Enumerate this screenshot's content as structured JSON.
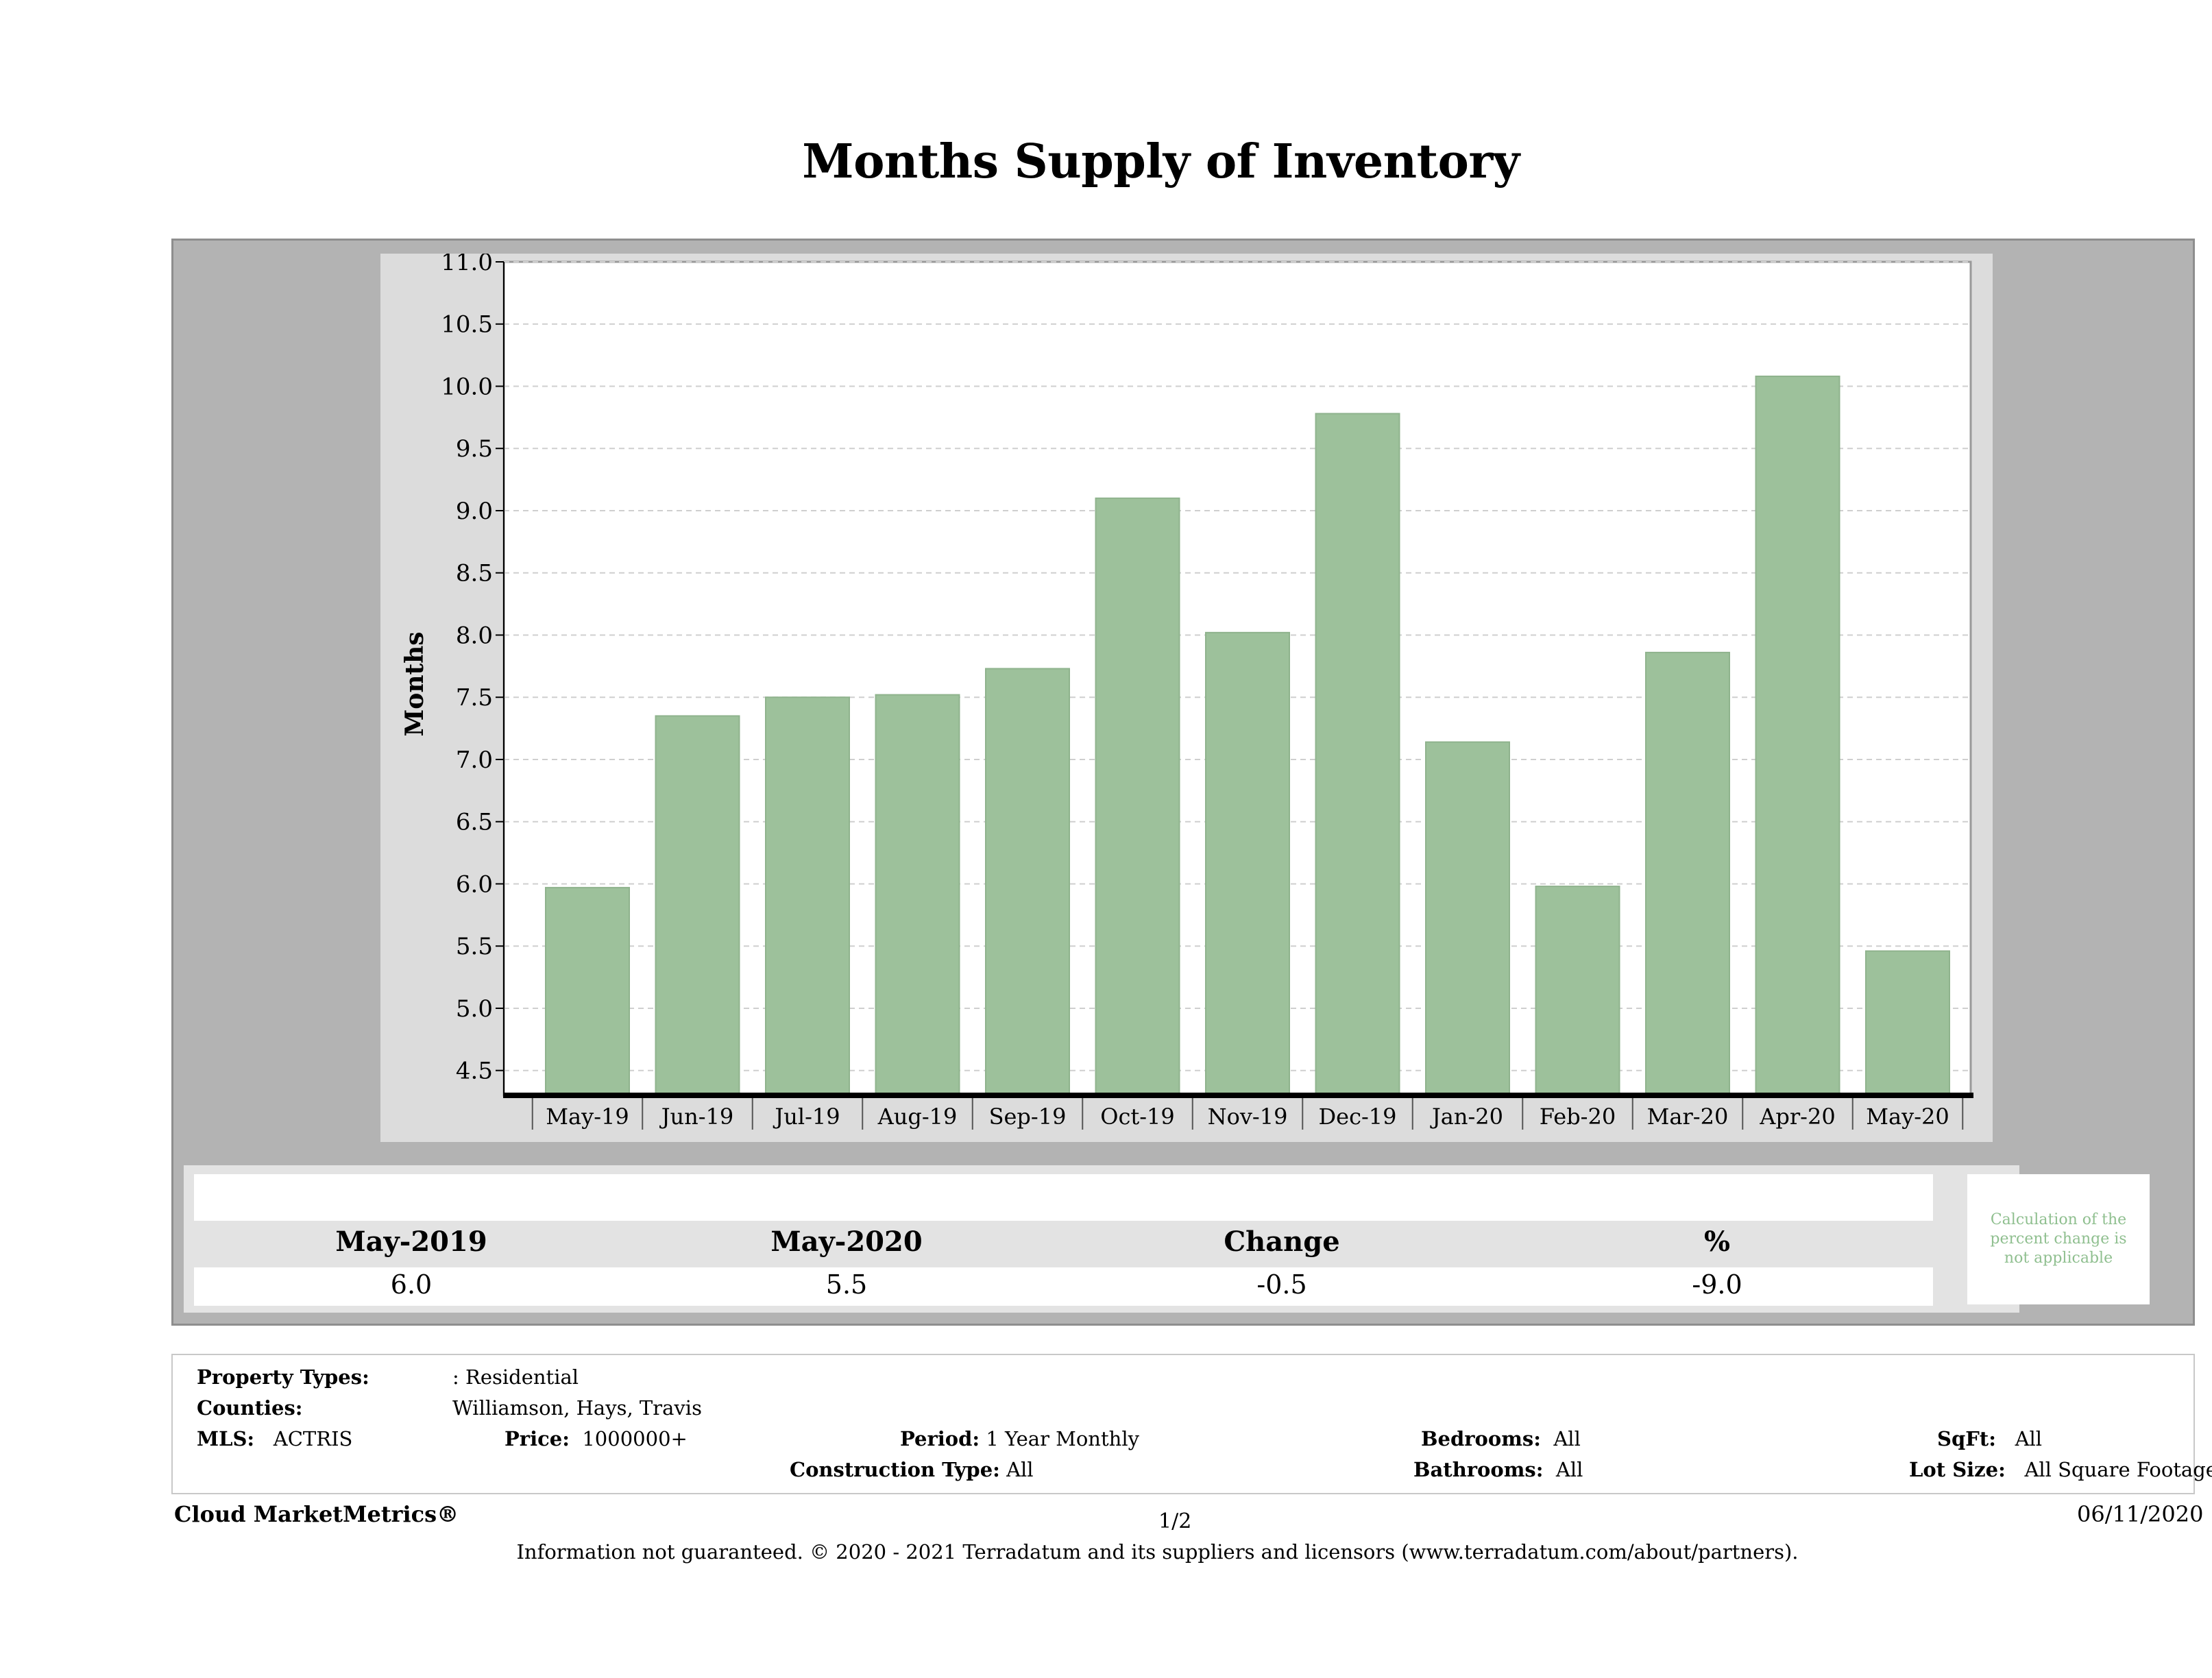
{
  "title": "Months Supply of Inventory",
  "chart_data": {
    "type": "bar",
    "title": "Months Supply of Inventory",
    "xlabel": "",
    "ylabel": "Months",
    "ylim": [
      4.3,
      11.0
    ],
    "yticks": [
      "11.0",
      "10.5",
      "10.0",
      "9.5",
      "9.0",
      "8.5",
      "8.0",
      "7.5",
      "7.0",
      "6.5",
      "6.0",
      "5.5",
      "5.0",
      "4.5"
    ],
    "categories": [
      "May-19",
      "Jun-19",
      "Jul-19",
      "Aug-19",
      "Sep-19",
      "Oct-19",
      "Nov-19",
      "Dec-19",
      "Jan-20",
      "Feb-20",
      "Mar-20",
      "Apr-20",
      "May-20"
    ],
    "values": [
      5.97,
      7.35,
      7.5,
      7.52,
      7.73,
      9.1,
      8.02,
      9.78,
      7.14,
      5.98,
      7.86,
      10.08,
      5.46
    ],
    "bar_color": "#9dc19b",
    "grid": true
  },
  "summary": {
    "headers": [
      "May-2019",
      "May-2020",
      "Change",
      "%"
    ],
    "values": [
      "6.0",
      "5.5",
      "-0.5",
      "-9.0"
    ],
    "note": "Calculation of the percent change is not applicable"
  },
  "info": {
    "property_types_label": "Property Types:",
    "property_types_value": ": Residential",
    "counties_label": "Counties:",
    "counties_value": "Williamson, Hays, Travis",
    "mls_label": "MLS:",
    "mls_value": "ACTRIS",
    "price_label": "Price:",
    "price_value": "1000000+",
    "period_label": "Period:",
    "period_value": "1 Year Monthly",
    "construction_label": "Construction Type:",
    "construction_value": "All",
    "bedrooms_label": "Bedrooms:",
    "bedrooms_value": "All",
    "bathrooms_label": "Bathrooms:",
    "bathrooms_value": "All",
    "sqft_label": "SqFt:",
    "sqft_value": "All",
    "lot_label": "Lot Size:",
    "lot_value": "All Square Footage"
  },
  "footer": {
    "brand": "Cloud MarketMetrics®",
    "page": "1/2",
    "date": "06/11/2020",
    "disclaimer": "Information not guaranteed. © 2020 - 2021 Terradatum and its suppliers and licensors (www.terradatum.com/about/partners)."
  }
}
